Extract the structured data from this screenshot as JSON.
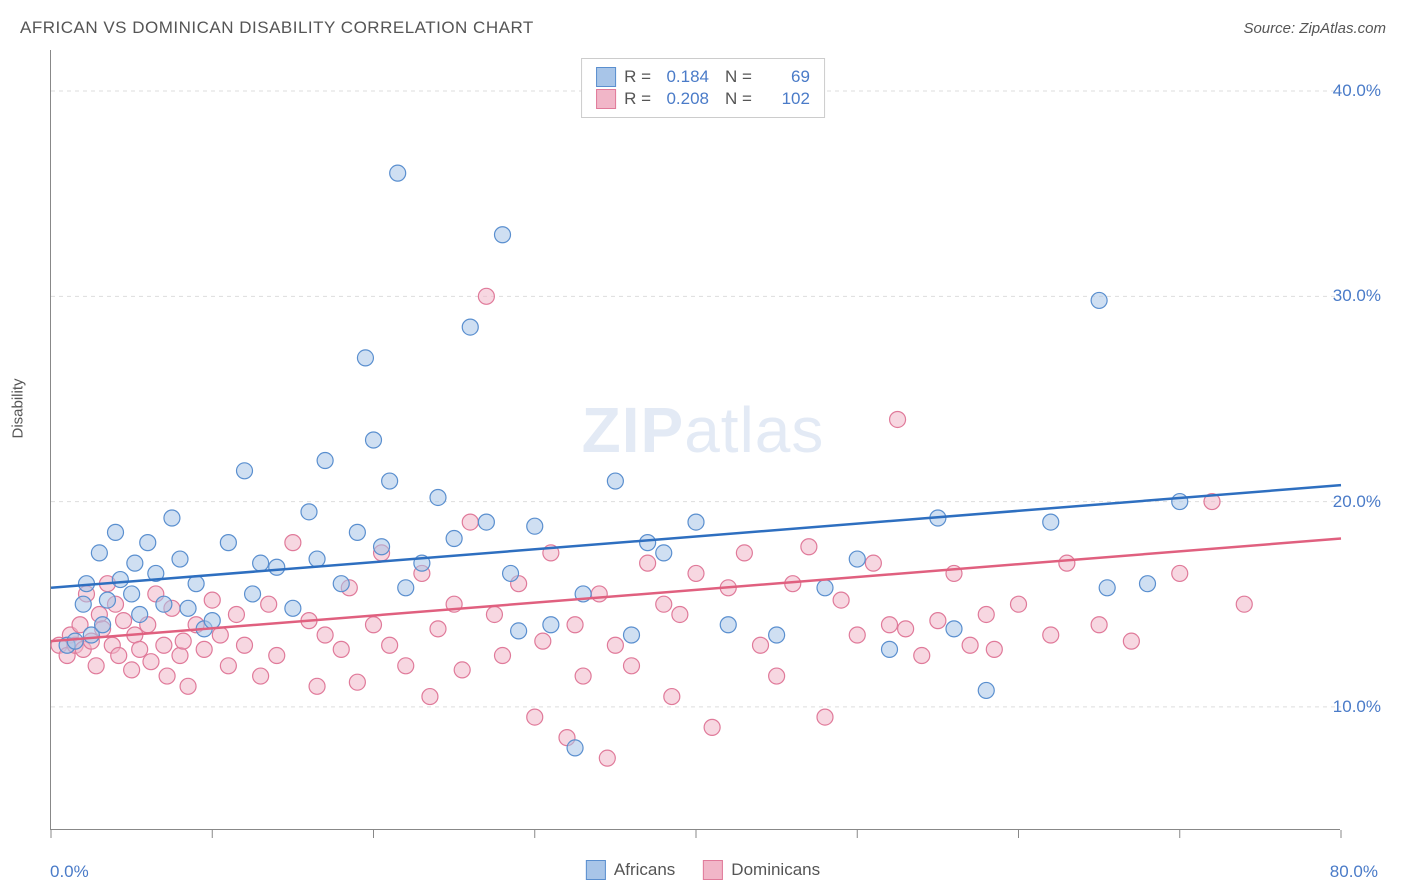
{
  "title": "AFRICAN VS DOMINICAN DISABILITY CORRELATION CHART",
  "source": "Source: ZipAtlas.com",
  "watermark_zip": "ZIP",
  "watermark_atlas": "atlas",
  "y_label": "Disability",
  "x_tick_min": "0.0%",
  "x_tick_max": "80.0%",
  "y_tick_10": "10.0%",
  "y_tick_20": "20.0%",
  "y_tick_30": "30.0%",
  "y_tick_40": "40.0%",
  "legend_top": {
    "r_label": "R =",
    "n_label": "N =",
    "s1_r": "0.184",
    "s1_n": "69",
    "s2_r": "0.208",
    "s2_n": "102"
  },
  "legend_bottom": {
    "s1": "Africans",
    "s2": "Dominicans"
  },
  "chart": {
    "type": "scatter",
    "xlim": [
      0,
      80
    ],
    "ylim": [
      4,
      42
    ],
    "y_ticks": [
      10,
      20,
      30,
      40
    ],
    "x_ticks": [
      0,
      10,
      20,
      30,
      40,
      50,
      60,
      70,
      80
    ],
    "marker_radius": 8,
    "marker_opacity": 0.55,
    "line_width": 2.5,
    "background_color": "#ffffff",
    "grid_color": "#dddddd",
    "tick_label_color": "#4a7bc8",
    "axis_label_color": "#555555",
    "series": {
      "africans": {
        "fill": "#a8c5e8",
        "stroke": "#5a8fcf",
        "trend_color": "#2e6fc0",
        "trend": {
          "y_at_x0": 15.8,
          "y_at_x80": 20.8
        },
        "points": [
          [
            1.0,
            13.0
          ],
          [
            1.5,
            13.2
          ],
          [
            2.0,
            15.0
          ],
          [
            2.2,
            16.0
          ],
          [
            2.5,
            13.5
          ],
          [
            3.0,
            17.5
          ],
          [
            3.2,
            14.0
          ],
          [
            3.5,
            15.2
          ],
          [
            4.0,
            18.5
          ],
          [
            4.3,
            16.2
          ],
          [
            5.0,
            15.5
          ],
          [
            5.2,
            17.0
          ],
          [
            5.5,
            14.5
          ],
          [
            6.0,
            18.0
          ],
          [
            6.5,
            16.5
          ],
          [
            7.0,
            15.0
          ],
          [
            7.5,
            19.2
          ],
          [
            8.0,
            17.2
          ],
          [
            8.5,
            14.8
          ],
          [
            9.0,
            16.0
          ],
          [
            9.5,
            13.8
          ],
          [
            10.0,
            14.2
          ],
          [
            11.0,
            18.0
          ],
          [
            12.0,
            21.5
          ],
          [
            12.5,
            15.5
          ],
          [
            13.0,
            17.0
          ],
          [
            14.0,
            16.8
          ],
          [
            15.0,
            14.8
          ],
          [
            16.0,
            19.5
          ],
          [
            16.5,
            17.2
          ],
          [
            17.0,
            22.0
          ],
          [
            18.0,
            16.0
          ],
          [
            19.0,
            18.5
          ],
          [
            19.5,
            27.0
          ],
          [
            20.0,
            23.0
          ],
          [
            20.5,
            17.8
          ],
          [
            21.0,
            21.0
          ],
          [
            21.5,
            36.0
          ],
          [
            22.0,
            15.8
          ],
          [
            23.0,
            17.0
          ],
          [
            24.0,
            20.2
          ],
          [
            25.0,
            18.2
          ],
          [
            26.0,
            28.5
          ],
          [
            27.0,
            19.0
          ],
          [
            28.0,
            33.0
          ],
          [
            28.5,
            16.5
          ],
          [
            29.0,
            13.7
          ],
          [
            30.0,
            18.8
          ],
          [
            31.0,
            14.0
          ],
          [
            32.5,
            8.0
          ],
          [
            33.0,
            15.5
          ],
          [
            35.0,
            21.0
          ],
          [
            36.0,
            13.5
          ],
          [
            37.0,
            18.0
          ],
          [
            38.0,
            17.5
          ],
          [
            40.0,
            19.0
          ],
          [
            42.0,
            14.0
          ],
          [
            45.0,
            13.5
          ],
          [
            48.0,
            15.8
          ],
          [
            50.0,
            17.2
          ],
          [
            52.0,
            12.8
          ],
          [
            55.0,
            19.2
          ],
          [
            56.0,
            13.8
          ],
          [
            58.0,
            10.8
          ],
          [
            62.0,
            19.0
          ],
          [
            65.0,
            29.8
          ],
          [
            68.0,
            16.0
          ],
          [
            70.0,
            20.0
          ],
          [
            65.5,
            15.8
          ]
        ]
      },
      "dominicans": {
        "fill": "#f1b6c8",
        "stroke": "#e07a9a",
        "trend_color": "#e0607f",
        "trend": {
          "y_at_x0": 13.2,
          "y_at_x80": 18.2
        },
        "points": [
          [
            0.5,
            13.0
          ],
          [
            1.0,
            12.5
          ],
          [
            1.2,
            13.5
          ],
          [
            1.5,
            13.0
          ],
          [
            1.8,
            14.0
          ],
          [
            2.0,
            12.8
          ],
          [
            2.2,
            15.5
          ],
          [
            2.5,
            13.2
          ],
          [
            2.8,
            12.0
          ],
          [
            3.0,
            14.5
          ],
          [
            3.2,
            13.8
          ],
          [
            3.5,
            16.0
          ],
          [
            3.8,
            13.0
          ],
          [
            4.0,
            15.0
          ],
          [
            4.2,
            12.5
          ],
          [
            4.5,
            14.2
          ],
          [
            5.0,
            11.8
          ],
          [
            5.2,
            13.5
          ],
          [
            5.5,
            12.8
          ],
          [
            6.0,
            14.0
          ],
          [
            6.2,
            12.2
          ],
          [
            6.5,
            15.5
          ],
          [
            7.0,
            13.0
          ],
          [
            7.2,
            11.5
          ],
          [
            7.5,
            14.8
          ],
          [
            8.0,
            12.5
          ],
          [
            8.2,
            13.2
          ],
          [
            8.5,
            11.0
          ],
          [
            9.0,
            14.0
          ],
          [
            9.5,
            12.8
          ],
          [
            10.0,
            15.2
          ],
          [
            10.5,
            13.5
          ],
          [
            11.0,
            12.0
          ],
          [
            11.5,
            14.5
          ],
          [
            12.0,
            13.0
          ],
          [
            13.0,
            11.5
          ],
          [
            13.5,
            15.0
          ],
          [
            14.0,
            12.5
          ],
          [
            15.0,
            18.0
          ],
          [
            16.0,
            14.2
          ],
          [
            16.5,
            11.0
          ],
          [
            17.0,
            13.5
          ],
          [
            18.0,
            12.8
          ],
          [
            18.5,
            15.8
          ],
          [
            19.0,
            11.2
          ],
          [
            20.0,
            14.0
          ],
          [
            20.5,
            17.5
          ],
          [
            21.0,
            13.0
          ],
          [
            22.0,
            12.0
          ],
          [
            23.0,
            16.5
          ],
          [
            23.5,
            10.5
          ],
          [
            24.0,
            13.8
          ],
          [
            25.0,
            15.0
          ],
          [
            25.5,
            11.8
          ],
          [
            26.0,
            19.0
          ],
          [
            27.0,
            30.0
          ],
          [
            27.5,
            14.5
          ],
          [
            28.0,
            12.5
          ],
          [
            29.0,
            16.0
          ],
          [
            30.0,
            9.5
          ],
          [
            30.5,
            13.2
          ],
          [
            31.0,
            17.5
          ],
          [
            32.0,
            8.5
          ],
          [
            32.5,
            14.0
          ],
          [
            33.0,
            11.5
          ],
          [
            34.0,
            15.5
          ],
          [
            34.5,
            7.5
          ],
          [
            35.0,
            13.0
          ],
          [
            36.0,
            12.0
          ],
          [
            37.0,
            17.0
          ],
          [
            38.0,
            15.0
          ],
          [
            38.5,
            10.5
          ],
          [
            39.0,
            14.5
          ],
          [
            40.0,
            16.5
          ],
          [
            41.0,
            9.0
          ],
          [
            42.0,
            15.8
          ],
          [
            43.0,
            17.5
          ],
          [
            44.0,
            13.0
          ],
          [
            45.0,
            11.5
          ],
          [
            46.0,
            16.0
          ],
          [
            47.0,
            17.8
          ],
          [
            48.0,
            9.5
          ],
          [
            49.0,
            15.2
          ],
          [
            50.0,
            13.5
          ],
          [
            51.0,
            17.0
          ],
          [
            52.0,
            14.0
          ],
          [
            52.5,
            24.0
          ],
          [
            53.0,
            13.8
          ],
          [
            54.0,
            12.5
          ],
          [
            55.0,
            14.2
          ],
          [
            56.0,
            16.5
          ],
          [
            57.0,
            13.0
          ],
          [
            58.0,
            14.5
          ],
          [
            58.5,
            12.8
          ],
          [
            60.0,
            15.0
          ],
          [
            62.0,
            13.5
          ],
          [
            63.0,
            17.0
          ],
          [
            65.0,
            14.0
          ],
          [
            67.0,
            13.2
          ],
          [
            70.0,
            16.5
          ],
          [
            72.0,
            20.0
          ],
          [
            74.0,
            15.0
          ]
        ]
      }
    }
  }
}
